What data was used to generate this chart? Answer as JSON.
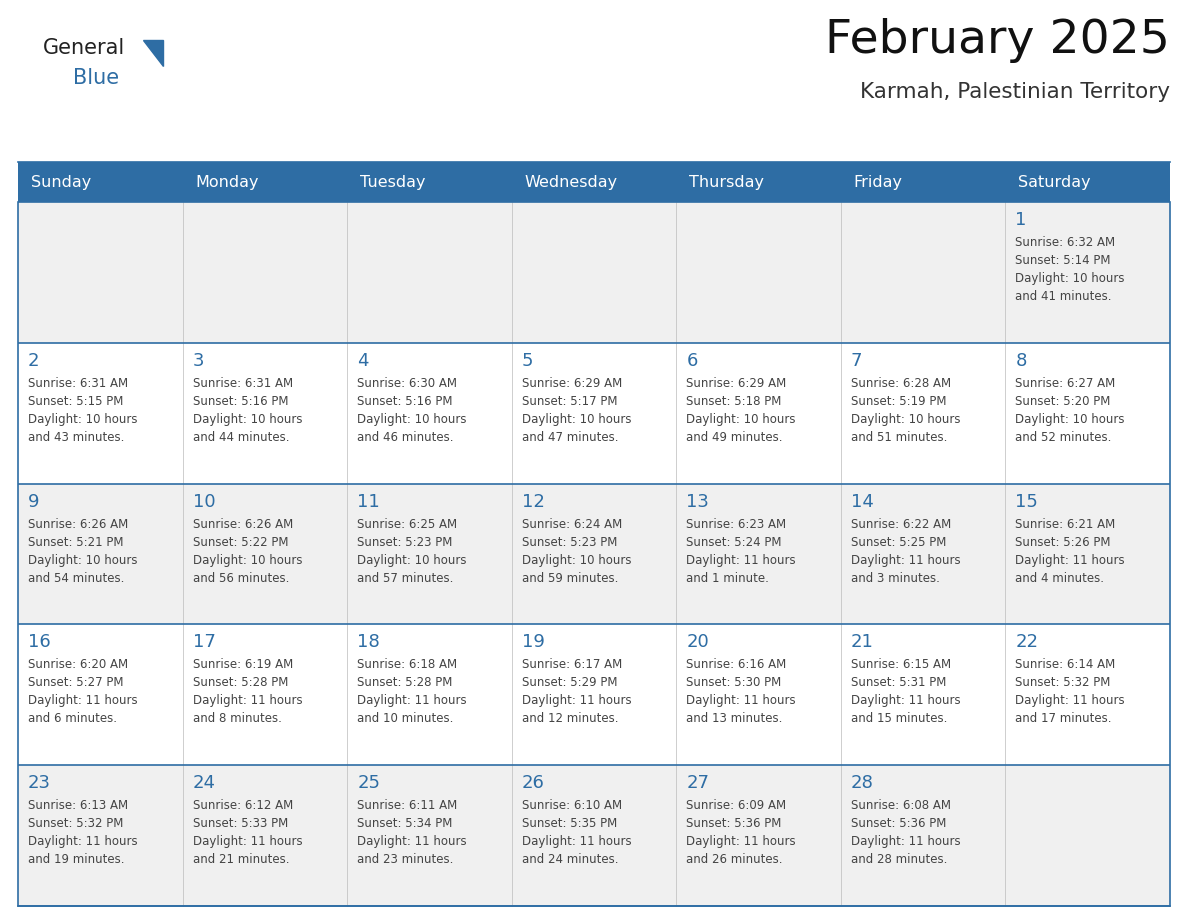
{
  "title": "February 2025",
  "subtitle": "Karmah, Palestinian Territory",
  "header_bg": "#2E6DA4",
  "header_text_color": "#FFFFFF",
  "cell_bg": "#FFFFFF",
  "cell_bg_alt": "#F0F0F0",
  "day_number_color": "#2E6DA4",
  "info_text_color": "#444444",
  "border_color": "#2E6DA4",
  "divider_color": "#CCCCCC",
  "days_of_week": [
    "Sunday",
    "Monday",
    "Tuesday",
    "Wednesday",
    "Thursday",
    "Friday",
    "Saturday"
  ],
  "weeks": [
    [
      {
        "day": "",
        "info": ""
      },
      {
        "day": "",
        "info": ""
      },
      {
        "day": "",
        "info": ""
      },
      {
        "day": "",
        "info": ""
      },
      {
        "day": "",
        "info": ""
      },
      {
        "day": "",
        "info": ""
      },
      {
        "day": "1",
        "info": "Sunrise: 6:32 AM\nSunset: 5:14 PM\nDaylight: 10 hours\nand 41 minutes."
      }
    ],
    [
      {
        "day": "2",
        "info": "Sunrise: 6:31 AM\nSunset: 5:15 PM\nDaylight: 10 hours\nand 43 minutes."
      },
      {
        "day": "3",
        "info": "Sunrise: 6:31 AM\nSunset: 5:16 PM\nDaylight: 10 hours\nand 44 minutes."
      },
      {
        "day": "4",
        "info": "Sunrise: 6:30 AM\nSunset: 5:16 PM\nDaylight: 10 hours\nand 46 minutes."
      },
      {
        "day": "5",
        "info": "Sunrise: 6:29 AM\nSunset: 5:17 PM\nDaylight: 10 hours\nand 47 minutes."
      },
      {
        "day": "6",
        "info": "Sunrise: 6:29 AM\nSunset: 5:18 PM\nDaylight: 10 hours\nand 49 minutes."
      },
      {
        "day": "7",
        "info": "Sunrise: 6:28 AM\nSunset: 5:19 PM\nDaylight: 10 hours\nand 51 minutes."
      },
      {
        "day": "8",
        "info": "Sunrise: 6:27 AM\nSunset: 5:20 PM\nDaylight: 10 hours\nand 52 minutes."
      }
    ],
    [
      {
        "day": "9",
        "info": "Sunrise: 6:26 AM\nSunset: 5:21 PM\nDaylight: 10 hours\nand 54 minutes."
      },
      {
        "day": "10",
        "info": "Sunrise: 6:26 AM\nSunset: 5:22 PM\nDaylight: 10 hours\nand 56 minutes."
      },
      {
        "day": "11",
        "info": "Sunrise: 6:25 AM\nSunset: 5:23 PM\nDaylight: 10 hours\nand 57 minutes."
      },
      {
        "day": "12",
        "info": "Sunrise: 6:24 AM\nSunset: 5:23 PM\nDaylight: 10 hours\nand 59 minutes."
      },
      {
        "day": "13",
        "info": "Sunrise: 6:23 AM\nSunset: 5:24 PM\nDaylight: 11 hours\nand 1 minute."
      },
      {
        "day": "14",
        "info": "Sunrise: 6:22 AM\nSunset: 5:25 PM\nDaylight: 11 hours\nand 3 minutes."
      },
      {
        "day": "15",
        "info": "Sunrise: 6:21 AM\nSunset: 5:26 PM\nDaylight: 11 hours\nand 4 minutes."
      }
    ],
    [
      {
        "day": "16",
        "info": "Sunrise: 6:20 AM\nSunset: 5:27 PM\nDaylight: 11 hours\nand 6 minutes."
      },
      {
        "day": "17",
        "info": "Sunrise: 6:19 AM\nSunset: 5:28 PM\nDaylight: 11 hours\nand 8 minutes."
      },
      {
        "day": "18",
        "info": "Sunrise: 6:18 AM\nSunset: 5:28 PM\nDaylight: 11 hours\nand 10 minutes."
      },
      {
        "day": "19",
        "info": "Sunrise: 6:17 AM\nSunset: 5:29 PM\nDaylight: 11 hours\nand 12 minutes."
      },
      {
        "day": "20",
        "info": "Sunrise: 6:16 AM\nSunset: 5:30 PM\nDaylight: 11 hours\nand 13 minutes."
      },
      {
        "day": "21",
        "info": "Sunrise: 6:15 AM\nSunset: 5:31 PM\nDaylight: 11 hours\nand 15 minutes."
      },
      {
        "day": "22",
        "info": "Sunrise: 6:14 AM\nSunset: 5:32 PM\nDaylight: 11 hours\nand 17 minutes."
      }
    ],
    [
      {
        "day": "23",
        "info": "Sunrise: 6:13 AM\nSunset: 5:32 PM\nDaylight: 11 hours\nand 19 minutes."
      },
      {
        "day": "24",
        "info": "Sunrise: 6:12 AM\nSunset: 5:33 PM\nDaylight: 11 hours\nand 21 minutes."
      },
      {
        "day": "25",
        "info": "Sunrise: 6:11 AM\nSunset: 5:34 PM\nDaylight: 11 hours\nand 23 minutes."
      },
      {
        "day": "26",
        "info": "Sunrise: 6:10 AM\nSunset: 5:35 PM\nDaylight: 11 hours\nand 24 minutes."
      },
      {
        "day": "27",
        "info": "Sunrise: 6:09 AM\nSunset: 5:36 PM\nDaylight: 11 hours\nand 26 minutes."
      },
      {
        "day": "28",
        "info": "Sunrise: 6:08 AM\nSunset: 5:36 PM\nDaylight: 11 hours\nand 28 minutes."
      },
      {
        "day": "",
        "info": ""
      }
    ]
  ]
}
